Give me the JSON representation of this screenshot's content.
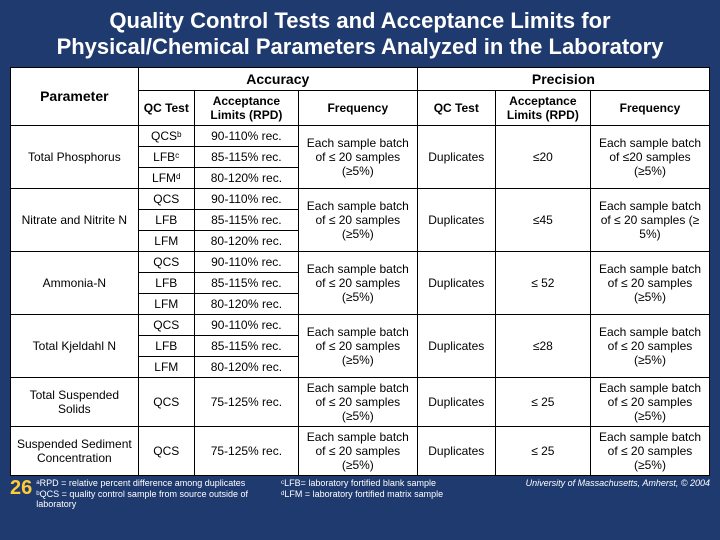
{
  "colors": {
    "background": "#1f3a6e",
    "title_text": "#ffffff",
    "page_number": "#ffcc33",
    "table_bg": "#ffffff",
    "border": "#000000"
  },
  "title": "Quality Control Tests and Acceptance Limits for Physical/Chemical Parameters Analyzed in the Laboratory",
  "headers": {
    "accuracy": "Accuracy",
    "precision": "Precision",
    "parameter": "Parameter",
    "qc_test": "QC Test",
    "acc_limits": "Acceptance Limits (RPD)",
    "frequency": "Frequency",
    "qc_test2": "QC Test",
    "acc_limits2": "Acceptance Limits (RPD)",
    "frequency2": "Frequency"
  },
  "rows": [
    {
      "param": "Total Phosphorus",
      "acc": [
        {
          "qc": "QCSᵇ",
          "lim": "90-110% rec."
        },
        {
          "qc": "LFBᶜ",
          "lim": "85-115% rec."
        },
        {
          "qc": "LFMᵈ",
          "lim": "80-120% rec."
        }
      ],
      "acc_freq": "Each sample batch of ≤ 20 samples (≥5%)",
      "prec_qc": "Duplicates",
      "prec_lim": "≤20",
      "prec_freq": "Each sample batch of ≤20 samples (≥5%)"
    },
    {
      "param": "Nitrate and Nitrite N",
      "acc": [
        {
          "qc": "QCS",
          "lim": "90-110% rec."
        },
        {
          "qc": "LFB",
          "lim": "85-115% rec."
        },
        {
          "qc": "LFM",
          "lim": "80-120% rec."
        }
      ],
      "acc_freq": "Each sample batch of ≤ 20 samples (≥5%)",
      "prec_qc": "Duplicates",
      "prec_lim": "≤45",
      "prec_freq": "Each sample batch of ≤ 20 samples (≥ 5%)"
    },
    {
      "param": "Ammonia-N",
      "acc": [
        {
          "qc": "QCS",
          "lim": "90-110% rec."
        },
        {
          "qc": "LFB",
          "lim": "85-115% rec."
        },
        {
          "qc": "LFM",
          "lim": "80-120% rec."
        }
      ],
      "acc_freq": "Each sample batch of ≤ 20 samples (≥5%)",
      "prec_qc": "Duplicates",
      "prec_lim": "≤ 52",
      "prec_freq": "Each sample batch of ≤ 20 samples (≥5%)"
    },
    {
      "param": "Total Kjeldahl N",
      "acc": [
        {
          "qc": "QCS",
          "lim": "90-110% rec."
        },
        {
          "qc": "LFB",
          "lim": "85-115% rec."
        },
        {
          "qc": "LFM",
          "lim": "80-120% rec."
        }
      ],
      "acc_freq": "Each sample batch of ≤ 20 samples (≥5%)",
      "prec_qc": "Duplicates",
      "prec_lim": "≤28",
      "prec_freq": "Each sample batch of ≤ 20 samples (≥5%)"
    },
    {
      "param": "Total Suspended Solids",
      "acc": [
        {
          "qc": "QCS",
          "lim": "75-125% rec."
        }
      ],
      "acc_freq": "Each sample batch of ≤ 20 samples (≥5%)",
      "prec_qc": "Duplicates",
      "prec_lim": "≤ 25",
      "prec_freq": "Each sample batch of ≤ 20 samples (≥5%)"
    },
    {
      "param": "Suspended Sediment Concentration",
      "acc": [
        {
          "qc": "QCS",
          "lim": "75-125% rec."
        }
      ],
      "acc_freq": "Each sample batch of ≤ 20 samples (≥5%)",
      "prec_qc": "Duplicates",
      "prec_lim": "≤ 25",
      "prec_freq": "Each sample batch of ≤ 20 samples (≥5%)"
    }
  ],
  "page_number": "26",
  "footnotes": {
    "a": "ᵃRPD = relative percent difference among duplicates",
    "b": "ᵇQCS = quality control sample from source outside of laboratory",
    "c": "ᶜLFB= laboratory fortified blank sample",
    "d": "ᵈLFM = laboratory fortified matrix sample",
    "copyright": "University of Massachusetts, Amherst, © 2004"
  }
}
